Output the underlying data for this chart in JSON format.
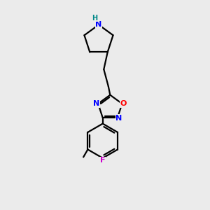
{
  "background_color": "#ebebeb",
  "atom_colors": {
    "N": "#0000ff",
    "O": "#ff0000",
    "F": "#cc00cc",
    "H": "#008888",
    "C": "#000000"
  },
  "bond_color": "#000000",
  "bond_width": 1.6,
  "fig_width": 3.0,
  "fig_height": 3.0,
  "dpi": 100
}
